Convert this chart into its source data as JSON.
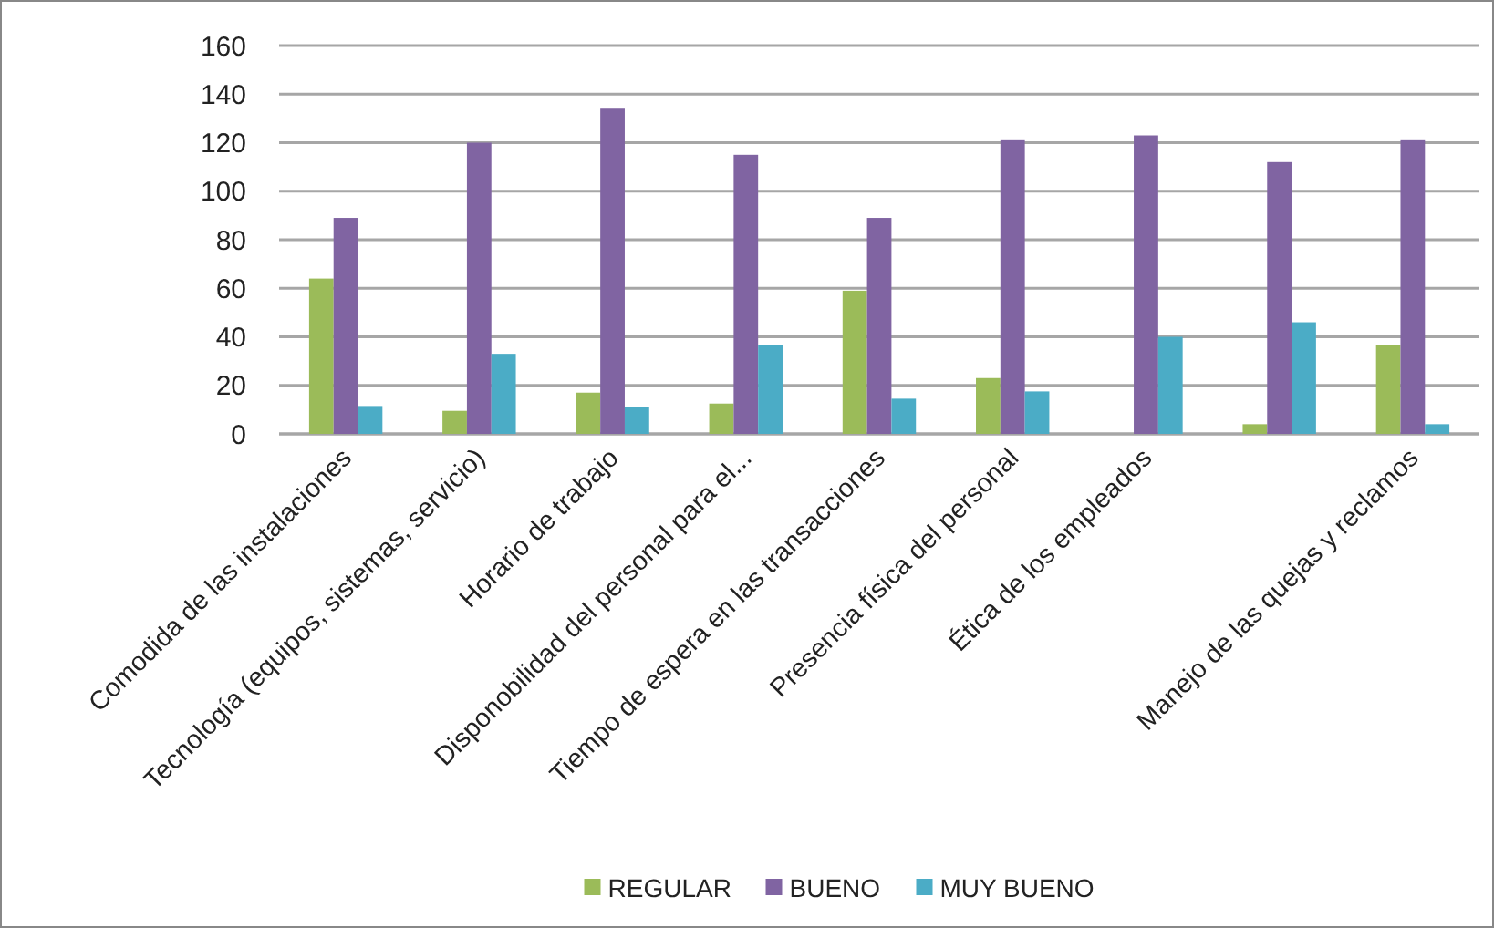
{
  "chart_data": {
    "type": "bar",
    "categories": [
      "Comodida de las instalaciones",
      "Tecnología (equipos, sistemas, servicio)",
      "Horario de trabajo",
      "Disponobilidad del personal para el...",
      "Tiempo de espera en las transacciones",
      "Presencia física del personal",
      "Ética de los empleados",
      null,
      "Manejo de las quejas y reclamos"
    ],
    "series": [
      {
        "name": "REGULAR",
        "color": "#9bbb59",
        "values": [
          64,
          9.5,
          17,
          12.5,
          59,
          23,
          0,
          4,
          36.5
        ]
      },
      {
        "name": "BUENO",
        "color": "#8064a2",
        "values": [
          89,
          120,
          134,
          115,
          89,
          121,
          123,
          112,
          121
        ]
      },
      {
        "name": "MUY BUENO",
        "color": "#4bacc6",
        "values": [
          11.5,
          33,
          11,
          36.5,
          14.5,
          17.5,
          40,
          46,
          4
        ]
      }
    ],
    "ylim": [
      0,
      160
    ],
    "yticks": [
      0,
      20,
      40,
      60,
      80,
      100,
      120,
      140,
      160
    ],
    "grid": "y",
    "legend": "bottom"
  }
}
